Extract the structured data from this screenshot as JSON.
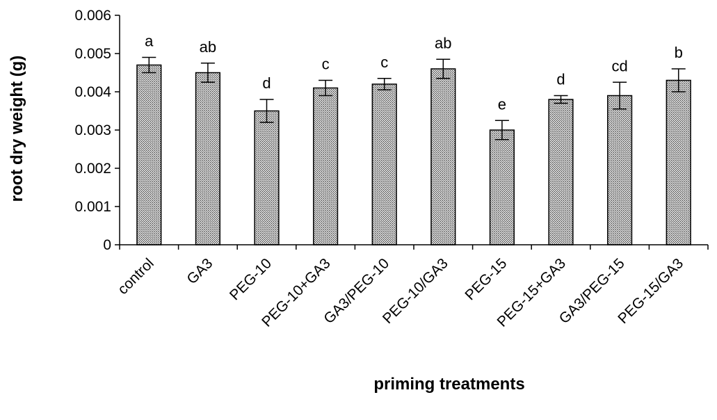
{
  "chart_data": {
    "type": "bar",
    "title": "",
    "xlabel": "priming treatments",
    "ylabel": "root dry weight (g)",
    "ylim": [
      0,
      0.006
    ],
    "yticks": [
      "0",
      "0.001",
      "0.002",
      "0.003",
      "0.004",
      "0.005",
      "0.006"
    ],
    "categories": [
      "control",
      "GA3",
      "PEG-10",
      "PEG-10+GA3",
      "GA3/PEG-10",
      "PEG-10/GA3",
      "PEG-15",
      "PEG-15+GA3",
      "GA3/PEG-15",
      "PEG-15/GA3"
    ],
    "values": [
      0.0047,
      0.0045,
      0.0035,
      0.0041,
      0.0042,
      0.0046,
      0.003,
      0.0038,
      0.0039,
      0.0043
    ],
    "errors": [
      0.0002,
      0.00025,
      0.0003,
      0.0002,
      0.00015,
      0.00025,
      0.00025,
      0.0001,
      0.00035,
      0.0003
    ],
    "significance_letters": [
      "a",
      "ab",
      "d",
      "c",
      "c",
      "ab",
      "e",
      "d",
      "cd",
      "b"
    ],
    "bar_pattern": "crosshatch",
    "bar_color": "#9a9a9a",
    "edge_color": "#000000",
    "grid": false,
    "legend": "none"
  }
}
